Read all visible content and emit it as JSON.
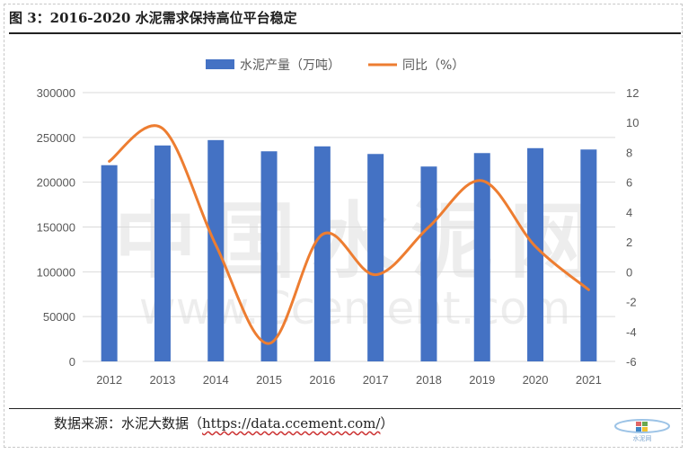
{
  "figure": {
    "title": "图 3：2016-2020 水泥需求保持高位平台稳定",
    "source_prefix": "数据来源：水泥大数据（",
    "source_url": "https://data.ccement.com/",
    "source_suffix": "）"
  },
  "watermark": {
    "text_cn": "中国水泥网",
    "text_en": "www.Ccement.com",
    "logo_text": "水泥网"
  },
  "colors": {
    "bar": "#4472C4",
    "line": "#ED7D31",
    "grid": "#d9d9d9",
    "axis_text": "#595959"
  },
  "chart_data": {
    "type": "bar",
    "categories": [
      "2012",
      "2013",
      "2014",
      "2015",
      "2016",
      "2017",
      "2018",
      "2019",
      "2020",
      "2021"
    ],
    "series": [
      {
        "name": "水泥产量（万吨）",
        "type": "bar",
        "axis": "left",
        "values": [
          219000,
          241000,
          247000,
          234500,
          240000,
          231500,
          217500,
          232500,
          238000,
          236500
        ]
      },
      {
        "name": "同比（%）",
        "type": "line",
        "axis": "right",
        "smooth": true,
        "values": [
          7.4,
          9.6,
          1.8,
          -4.8,
          2.5,
          -0.2,
          3.0,
          6.1,
          1.7,
          -1.2
        ]
      }
    ],
    "y_left": {
      "ylim": [
        0,
        300000
      ],
      "ticks": [
        "0",
        "50000",
        "100000",
        "150000",
        "200000",
        "250000",
        "300000"
      ]
    },
    "y_right": {
      "ylim": [
        -6,
        12
      ],
      "ticks": [
        "-6",
        "-4",
        "-2",
        "0",
        "2",
        "4",
        "6",
        "8",
        "10",
        "12"
      ]
    },
    "grid": true,
    "legend": "top-center"
  }
}
